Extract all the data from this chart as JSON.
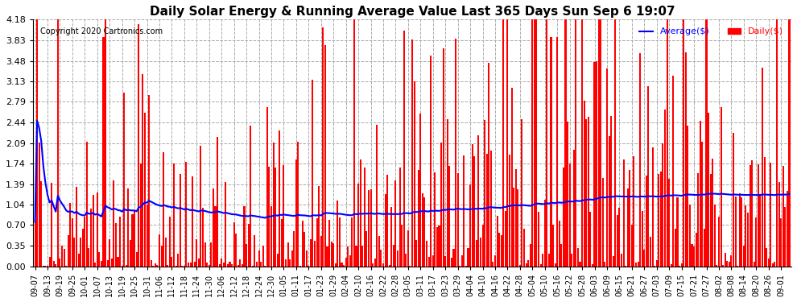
{
  "title": "Daily Solar Energy & Running Average Value Last 365 Days Sun Sep 6 19:07",
  "copyright": "Copyright 2020 Cartronics.com",
  "bar_color": "#ff0000",
  "avg_color": "#0000ff",
  "bg_color": "#ffffff",
  "ylim": [
    0.0,
    4.18
  ],
  "yticks": [
    0.0,
    0.35,
    0.7,
    1.04,
    1.39,
    1.74,
    2.09,
    2.44,
    2.79,
    3.13,
    3.48,
    3.83,
    4.18
  ],
  "grid_color": "#aaaaaa",
  "legend_avg": "Average($)",
  "legend_daily": "Daily($)",
  "x_labels": [
    "09-07",
    "09-13",
    "09-19",
    "09-25",
    "10-01",
    "10-07",
    "10-13",
    "10-19",
    "10-25",
    "10-31",
    "11-06",
    "11-12",
    "11-18",
    "11-24",
    "11-30",
    "12-06",
    "12-12",
    "12-18",
    "12-24",
    "12-30",
    "01-05",
    "01-11",
    "01-17",
    "01-23",
    "01-29",
    "02-04",
    "02-10",
    "02-16",
    "02-22",
    "02-28",
    "03-05",
    "03-11",
    "03-17",
    "03-23",
    "03-29",
    "04-04",
    "04-10",
    "04-16",
    "04-22",
    "04-28",
    "05-04",
    "05-10",
    "05-16",
    "05-22",
    "05-28",
    "06-03",
    "06-09",
    "06-15",
    "06-21",
    "06-27",
    "07-03",
    "07-09",
    "07-15",
    "07-21",
    "07-27",
    "08-02",
    "08-08",
    "08-14",
    "08-20",
    "08-26",
    "09-01"
  ],
  "seed": 42
}
